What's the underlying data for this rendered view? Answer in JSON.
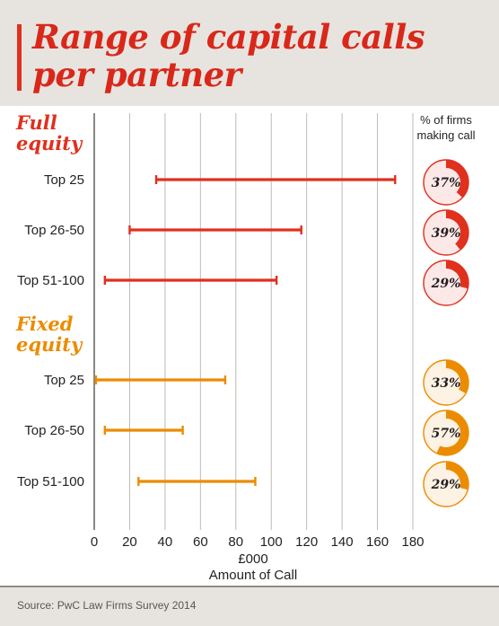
{
  "title": "Range of capital calls per partner",
  "source": "Source: PwC Law Firms Survey 2014",
  "colors": {
    "full": "#e0301e",
    "fixed": "#eb8c00",
    "full_light": "#fde8e8",
    "fixed_light": "#fdf2e3"
  },
  "chart_data": {
    "type": "range-bar",
    "xlabel_unit": "£000",
    "xlabel": "Amount of Call",
    "xlim": [
      0,
      180
    ],
    "xticks": [
      0,
      20,
      40,
      60,
      80,
      100,
      120,
      140,
      160,
      180
    ],
    "grid": "vertical",
    "side_label": "% of firms making call",
    "groups": [
      {
        "name": "Full equity",
        "color": "#e0301e",
        "rows": [
          {
            "category": "Top 25",
            "min": 35,
            "max": 170,
            "pct": 37,
            "pct_label": "37%"
          },
          {
            "category": "Top 26-50",
            "min": 20,
            "max": 117,
            "pct": 39,
            "pct_label": "39%"
          },
          {
            "category": "Top 51-100",
            "min": 6,
            "max": 103,
            "pct": 29,
            "pct_label": "29%"
          }
        ]
      },
      {
        "name": "Fixed equity",
        "color": "#eb8c00",
        "rows": [
          {
            "category": "Top 25",
            "min": 1,
            "max": 74,
            "pct": 33,
            "pct_label": "33%"
          },
          {
            "category": "Top 26-50",
            "min": 6,
            "max": 50,
            "pct": 57,
            "pct_label": "57%"
          },
          {
            "category": "Top 51-100",
            "min": 25,
            "max": 91,
            "pct": 29,
            "pct_label": "29%"
          }
        ]
      }
    ]
  }
}
